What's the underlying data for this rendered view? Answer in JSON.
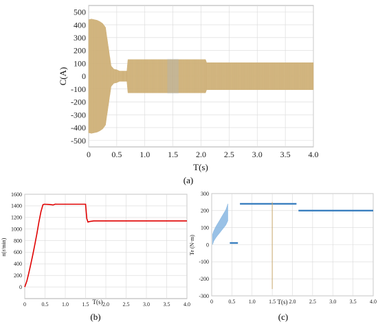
{
  "captions": {
    "a": "(a)",
    "b": "(b)",
    "c": "(c)"
  },
  "colors": {
    "current_band": "#d2b47c",
    "current_overlay": "#9fb8d6",
    "speed": "#e00000",
    "torque": "#3a7fbf",
    "torque_light": "#7fb2e0",
    "grid": "#d9d9d9"
  },
  "chart_data": [
    {
      "id": "a",
      "type": "line",
      "title": "",
      "xlabel": "T(s)",
      "ylabel": "C(A)",
      "xlim": [
        0,
        4.0
      ],
      "ylim": [
        -550,
        550
      ],
      "xticks": [
        "0",
        "0.5",
        "1.0",
        "1.5",
        "2.0",
        "2.5",
        "3.0",
        "3.5",
        "4.0"
      ],
      "yticks": [
        "500",
        "400",
        "300",
        "200",
        "100",
        "0",
        "-100",
        "-200",
        "-300",
        "-400",
        "-500"
      ],
      "grid": true,
      "legend": "none",
      "series": [
        {
          "style": "band",
          "x": [
            0.0,
            0.05,
            0.1,
            0.15,
            0.2,
            0.25,
            0.3,
            0.35,
            0.4,
            0.45,
            0.5,
            0.55,
            0.62,
            0.68,
            0.7,
            1.5,
            2.08,
            2.1,
            4.0
          ],
          "upper": [
            440,
            445,
            440,
            435,
            425,
            410,
            380,
            230,
            80,
            55,
            50,
            40,
            40,
            40,
            130,
            130,
            130,
            105,
            105
          ],
          "lower": [
            -440,
            -445,
            -440,
            -435,
            -425,
            -410,
            -380,
            -230,
            -80,
            -55,
            -50,
            -40,
            -40,
            -40,
            -130,
            -130,
            -130,
            -105,
            -105
          ]
        }
      ]
    },
    {
      "id": "b",
      "type": "line",
      "title": "",
      "xlabel": "T(s)",
      "ylabel": "n(r/min)",
      "xlim": [
        0,
        4.0
      ],
      "ylim": [
        -200,
        1600
      ],
      "xticks": [
        "0",
        "0.5",
        "1.0",
        "1.5",
        "2.0",
        "2.5",
        "3.0",
        "3.5",
        "4.0"
      ],
      "yticks": [
        "1600",
        "1400",
        "1200",
        "1000",
        "800",
        "600",
        "400",
        "200",
        "0"
      ],
      "grid": true,
      "legend": "none",
      "series": [
        {
          "x": [
            0.0,
            0.05,
            0.1,
            0.15,
            0.2,
            0.25,
            0.3,
            0.35,
            0.4,
            0.45,
            0.48,
            0.6,
            0.7,
            0.75,
            0.8,
            1.5,
            1.53,
            1.56,
            1.6,
            1.7,
            2.0,
            4.0
          ],
          "y": [
            0,
            100,
            240,
            400,
            560,
            740,
            920,
            1120,
            1300,
            1420,
            1428,
            1425,
            1415,
            1430,
            1428,
            1428,
            1180,
            1120,
            1130,
            1140,
            1140,
            1140
          ]
        }
      ]
    },
    {
      "id": "c",
      "type": "line",
      "title": "",
      "xlabel": "T(s)",
      "ylabel": "Te (N·m)",
      "xlim": [
        0,
        4.0
      ],
      "ylim": [
        -300,
        300
      ],
      "xticks": [
        "0",
        "0.5",
        "1.0",
        "1.5",
        "2.0",
        "2.5",
        "3.0",
        "3.5",
        "4.0"
      ],
      "yticks": [
        "300",
        "200",
        "100",
        "0",
        "-100",
        "-200",
        "-300"
      ],
      "grid": true,
      "legend": "none",
      "series": [
        {
          "x": [
            0.02,
            0.05,
            0.1,
            0.15,
            0.2,
            0.25,
            0.3,
            0.35,
            0.38,
            0.4
          ],
          "upper": [
            60,
            80,
            105,
            125,
            145,
            165,
            185,
            205,
            225,
            240
          ],
          "lower": [
            0,
            20,
            40,
            55,
            70,
            85,
            100,
            115,
            130,
            140
          ]
        },
        {
          "x": [
            0.45,
            0.65
          ],
          "y": [
            10,
            10
          ]
        },
        {
          "x": [
            0.7,
            1.5
          ],
          "y": [
            240,
            240
          ]
        },
        {
          "x": [
            1.5,
            2.1
          ],
          "y": [
            240,
            240
          ]
        },
        {
          "x": [
            2.15,
            4.0
          ],
          "y": [
            200,
            200
          ]
        }
      ],
      "spike": {
        "x": 1.5,
        "min": -260,
        "max": 250
      }
    }
  ]
}
